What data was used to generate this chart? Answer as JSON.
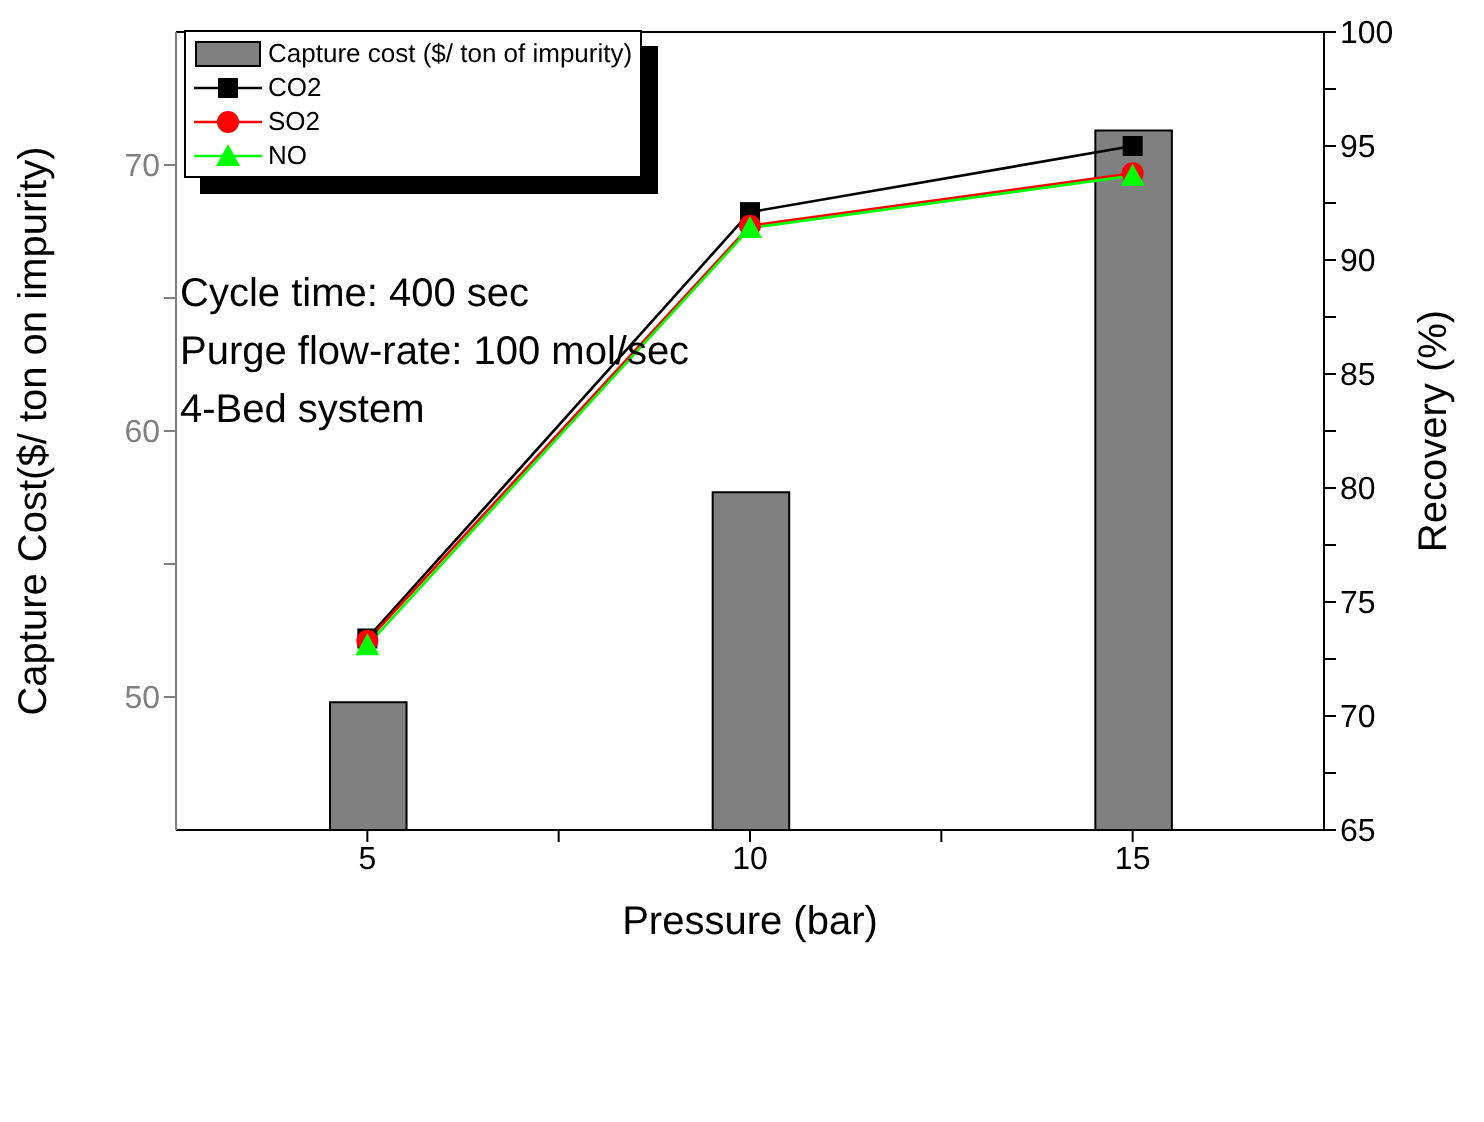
{
  "chart_data": {
    "type": "bar",
    "xlabel": "Pressure (bar)",
    "ylabel": "Capture Cost($/ ton on impurity)",
    "y2label": "Recovery (%)",
    "x": [
      5,
      10,
      15
    ],
    "series": [
      {
        "name": "Capture cost ($/ ton of impurity)",
        "color": "#808080",
        "values": [
          49.8,
          57.7,
          71.3
        ]
      },
      {
        "name": "CO2",
        "type": "line",
        "axis": "y2",
        "color": "#000000",
        "marker": "square",
        "values": [
          73.4,
          92.1,
          95.0
        ]
      },
      {
        "name": "SO2",
        "type": "line",
        "axis": "y2",
        "color": "#ff0000",
        "marker": "circle",
        "values": [
          73.3,
          91.5,
          93.8
        ]
      },
      {
        "name": "NO",
        "type": "line",
        "axis": "y2",
        "color": "#00ff00",
        "marker": "triangle",
        "values": [
          73.1,
          91.4,
          93.7
        ]
      }
    ],
    "xlim": [
      2.5,
      17.5
    ],
    "xticks": [
      5,
      {
        "value": 7.5,
        "label": null
      },
      10,
      {
        "value": 12.5,
        "label": null
      },
      15
    ],
    "ylim": [
      45,
      75
    ],
    "yticks": [
      50,
      {
        "value": 55,
        "label": null
      },
      60,
      {
        "value": 65,
        "label": null
      },
      70
    ],
    "y2lim": [
      65,
      100
    ],
    "y2ticks": [
      65,
      {
        "value": 67.5,
        "label": null
      },
      70,
      {
        "value": 72.5,
        "label": null
      },
      75,
      {
        "value": 77.5,
        "label": null
      },
      80,
      {
        "value": 82.5,
        "label": null
      },
      85,
      {
        "value": 87.5,
        "label": null
      },
      90,
      {
        "value": 92.5,
        "label": null
      },
      95,
      {
        "value": 97.5,
        "label": null
      },
      100
    ],
    "annotations": [
      "Cycle time: 400 sec",
      "Purge flow-rate: 100 mol/sec",
      "4-Bed system"
    ],
    "legend": "top left"
  }
}
